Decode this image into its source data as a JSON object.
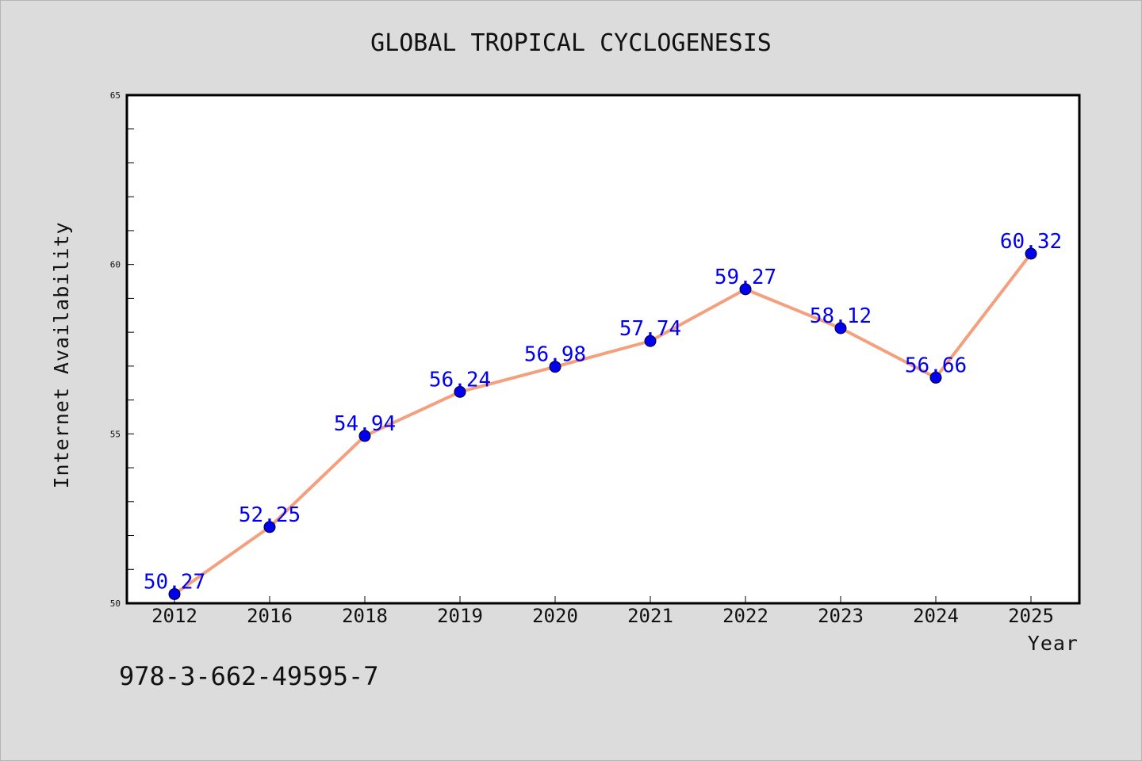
{
  "chart_data": {
    "type": "line",
    "title": "GLOBAL TROPICAL CYCLOGENESIS",
    "xlabel": "Year",
    "ylabel": "Internet Availability",
    "categories": [
      "2012",
      "2016",
      "2018",
      "2019",
      "2020",
      "2021",
      "2022",
      "2023",
      "2024",
      "2025"
    ],
    "series": [
      {
        "values": [
          50.27,
          52.25,
          54.94,
          56.24,
          56.98,
          57.74,
          59.27,
          58.12,
          56.66,
          60.32
        ]
      }
    ],
    "data_labels": [
      "50.27",
      "52.25",
      "54.94",
      "56.24",
      "56.98",
      "57.74",
      "59.27",
      "58.12",
      "56.66",
      "60.32"
    ],
    "ylim": [
      50,
      65
    ],
    "yticks": [
      "50",
      "55",
      "60",
      "65"
    ],
    "grid": false,
    "line_color": "#f4a07e",
    "marker_color": "#0000ee",
    "label_color": "#0000ee"
  },
  "footer": {
    "isbn": "978-3-662-49595-7"
  }
}
